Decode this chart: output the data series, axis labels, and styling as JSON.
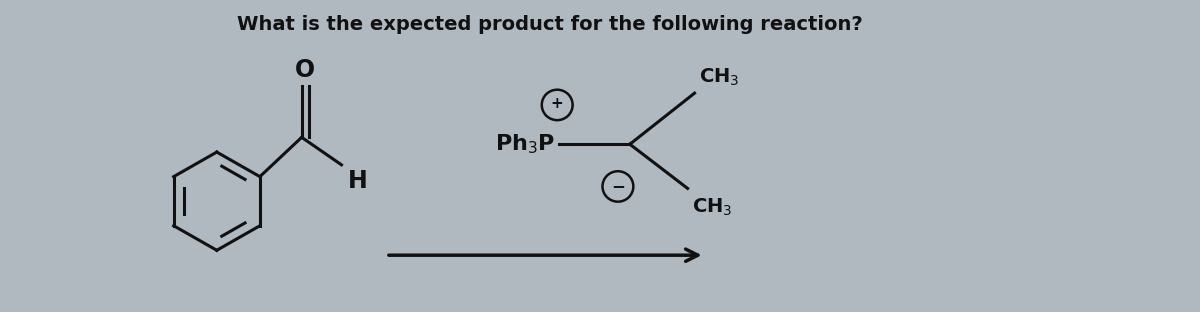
{
  "background_color": "#b0b8c0",
  "title_text": "What is the expected product for the following reaction?",
  "title_fontsize": 14,
  "figsize": [
    12.0,
    3.12
  ],
  "dpi": 100,
  "text_color": "#111111",
  "line_color": "#111111",
  "line_lw": 2.2
}
